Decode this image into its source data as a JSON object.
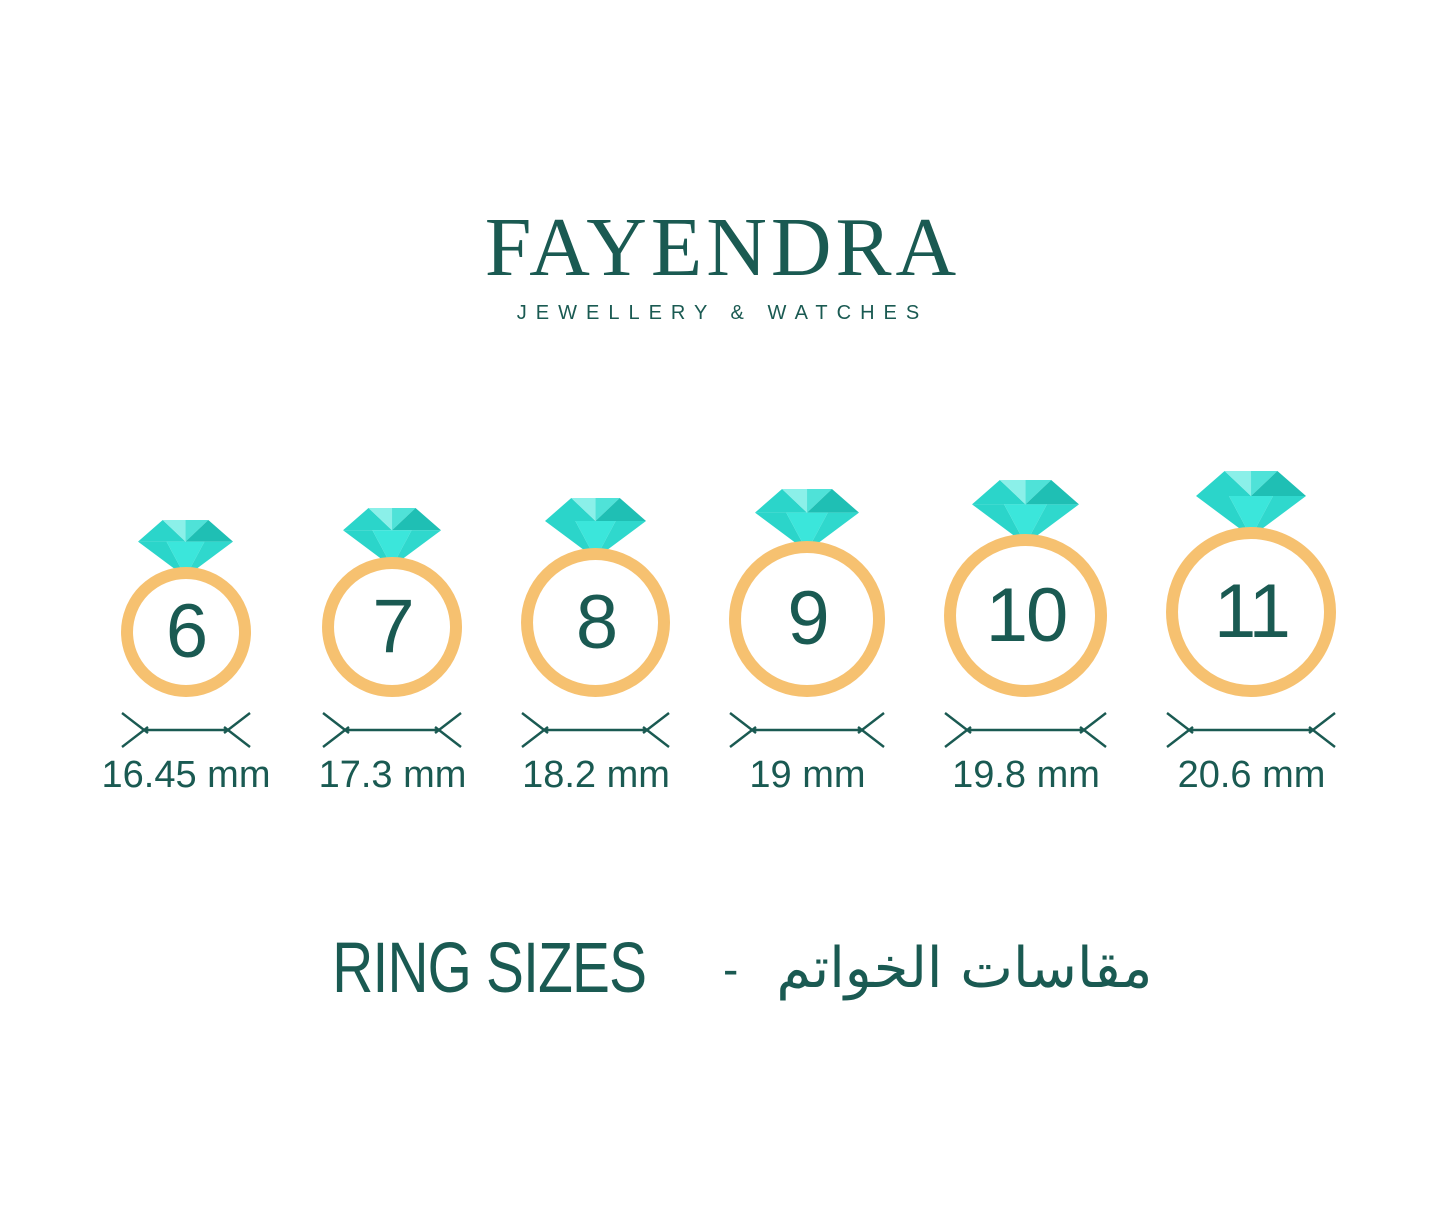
{
  "brand": {
    "name": "FAYENDRA",
    "tagline": "JEWELLERY & WATCHES"
  },
  "footer_title": {
    "en": "RING SIZES",
    "separator": "-",
    "ar": "مقاسات الخواتم"
  },
  "rings": [
    {
      "size": "6",
      "diameter_label": "16.45 mm"
    },
    {
      "size": "7",
      "diameter_label": "17.3 mm"
    },
    {
      "size": "8",
      "diameter_label": "18.2 mm"
    },
    {
      "size": "9",
      "diameter_label": "19 mm"
    },
    {
      "size": "10",
      "diameter_label": "19.8 mm"
    },
    {
      "size": "11",
      "diameter_label": "20.6 mm"
    }
  ],
  "colors": {
    "background": "#FFFFFF",
    "text-teal": "#1A5A52",
    "band-gold": "#F6C170",
    "gem-medium": "#2BD5CA",
    "gem-light": "#8BF0E9",
    "gem-midlight": "#4FE2D8",
    "gem-dark": "#1FBFB4",
    "gem-bright": "#3BE6DB",
    "gem-shadow": "#2FD8CD"
  }
}
